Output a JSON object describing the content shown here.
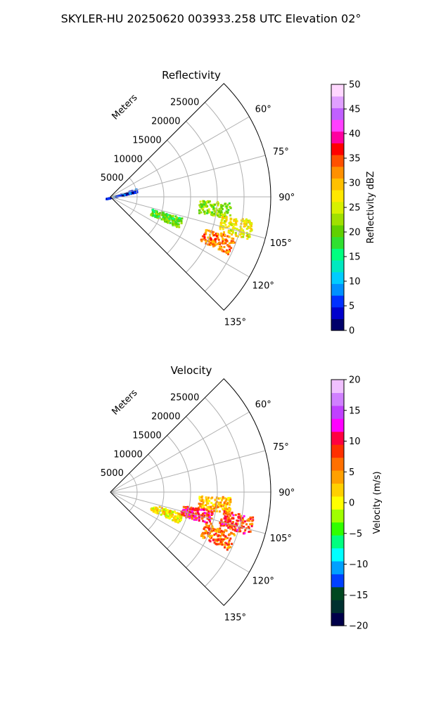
{
  "suptitle": "SKYLER-HU  20250620  003933.258 UTC Elevation 02°",
  "chart_data": [
    {
      "type": "polar-sector-radar",
      "title": "Reflectivity",
      "range_unit_label": "Meters",
      "range_ticks": [
        "5000",
        "10000",
        "15000",
        "20000",
        "25000"
      ],
      "range_tick_values": [
        5000,
        10000,
        15000,
        20000,
        25000
      ],
      "r_max": 30000,
      "azimuth_range_deg": [
        45,
        135
      ],
      "azimuth_gridlines_deg": [
        60,
        75,
        90,
        105,
        120,
        135
      ],
      "azimuth_tick_labels": [
        "60°",
        "75°",
        "90°",
        "105°",
        "120°",
        "135°"
      ],
      "grid": true,
      "colorbar": {
        "label": "Reflectivity dBZ",
        "min": 0,
        "max": 50,
        "ticks": [
          "0",
          "5",
          "10",
          "15",
          "20",
          "25",
          "30",
          "35",
          "40",
          "45",
          "50"
        ],
        "tick_values": [
          0,
          5,
          10,
          15,
          20,
          25,
          30,
          35,
          40,
          45,
          50
        ]
      },
      "echo_features": [
        {
          "az": 96,
          "r": 19500,
          "value": 22,
          "note": "line"
        },
        {
          "az": 110,
          "r": 11000,
          "value": 20,
          "note": "band"
        },
        {
          "az": 112,
          "r": 21500,
          "value": 33,
          "note": "core"
        },
        {
          "az": 103,
          "r": 24000,
          "value": 27,
          "note": "cell"
        },
        {
          "az": 75,
          "r": 2000,
          "value": 5,
          "note": "near-radar clutter"
        }
      ]
    },
    {
      "type": "polar-sector-radar",
      "title": "Velocity",
      "range_unit_label": "Meters",
      "range_ticks": [
        "5000",
        "10000",
        "15000",
        "20000",
        "25000"
      ],
      "range_tick_values": [
        5000,
        10000,
        15000,
        20000,
        25000
      ],
      "r_max": 30000,
      "azimuth_range_deg": [
        45,
        135
      ],
      "azimuth_gridlines_deg": [
        60,
        75,
        90,
        105,
        120,
        135
      ],
      "azimuth_tick_labels": [
        "60°",
        "75°",
        "90°",
        "105°",
        "120°",
        "135°"
      ],
      "grid": true,
      "colorbar": {
        "label": "Velocity (m/s)",
        "min": -20,
        "max": 20,
        "ticks": [
          "−20",
          "−15",
          "−10",
          "−5",
          "0",
          "5",
          "10",
          "15",
          "20"
        ],
        "tick_values": [
          -20,
          -15,
          -10,
          -5,
          0,
          5,
          10,
          15,
          20
        ]
      },
      "echo_features": [
        {
          "az": 96,
          "r": 19500,
          "value": 3,
          "note": "line"
        },
        {
          "az": 110,
          "r": 11000,
          "value": 1,
          "note": "band"
        },
        {
          "az": 104,
          "r": 16500,
          "value": 9,
          "note": "outbound cell"
        },
        {
          "az": 103,
          "r": 24000,
          "value": 8,
          "note": "outbound cell"
        },
        {
          "az": 112,
          "r": 21500,
          "value": 6,
          "note": "core"
        }
      ]
    }
  ]
}
